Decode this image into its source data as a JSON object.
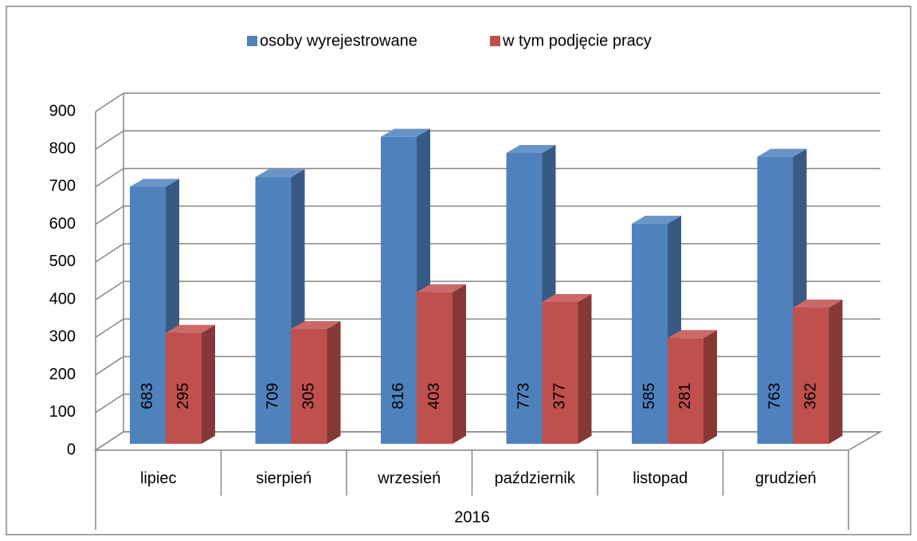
{
  "chart_data": {
    "type": "bar3d",
    "categories": [
      "lipiec",
      "sierpień",
      "wrzesień",
      "październik",
      "listopad",
      "grudzień"
    ],
    "group_label": "2016",
    "series": [
      {
        "name": "osoby wyrejestrowane",
        "color": "#4f81bd",
        "values": [
          683,
          709,
          816,
          773,
          585,
          763
        ]
      },
      {
        "name": "w tym podjęcie pracy",
        "color": "#c0504d",
        "values": [
          295,
          305,
          403,
          377,
          281,
          362
        ]
      }
    ],
    "ylim": [
      0,
      900
    ],
    "yticks": [
      0,
      100,
      200,
      300,
      400,
      500,
      600,
      700,
      800,
      900
    ],
    "grid": true,
    "legend": "top",
    "data_labels": true
  }
}
